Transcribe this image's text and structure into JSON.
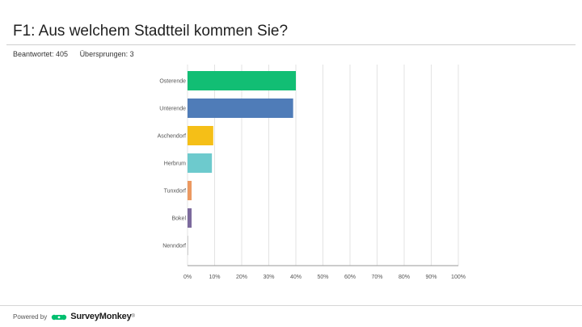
{
  "title": "F1: Aus welchem Stadtteil kommen Sie?",
  "stats": {
    "answered_label": "Beantwortet: 405",
    "skipped_label": "Übersprungen: 3"
  },
  "footer": {
    "powered_by": "Powered by",
    "brand": "SurveyMonkey",
    "brand_mark": "®"
  },
  "chart_data": {
    "type": "bar",
    "orientation": "horizontal",
    "title": "",
    "xlabel": "",
    "ylabel": "",
    "xlim": [
      0,
      100
    ],
    "grid": true,
    "categories": [
      "Osterende",
      "Unterende",
      "Aschendorf",
      "Herbrum",
      "Tunxdorf",
      "Bokel",
      "Nenndorf"
    ],
    "values": [
      40,
      39,
      9.5,
      9,
      1.5,
      1.5,
      0.2
    ],
    "colors": [
      "#12be74",
      "#4f7cb8",
      "#f5bf17",
      "#6dcacd",
      "#ec9961",
      "#7c6a9d",
      "#b5b5b5"
    ],
    "ticks": [
      {
        "value": 0,
        "label": "0%"
      },
      {
        "value": 10,
        "label": "10%"
      },
      {
        "value": 20,
        "label": "20%"
      },
      {
        "value": 30,
        "label": "30%"
      },
      {
        "value": 40,
        "label": "40%"
      },
      {
        "value": 50,
        "label": "50%"
      },
      {
        "value": 60,
        "label": "60%"
      },
      {
        "value": 70,
        "label": "70%"
      },
      {
        "value": 80,
        "label": "80%"
      },
      {
        "value": 90,
        "label": "90%"
      },
      {
        "value": 100,
        "label": "100%"
      }
    ]
  }
}
